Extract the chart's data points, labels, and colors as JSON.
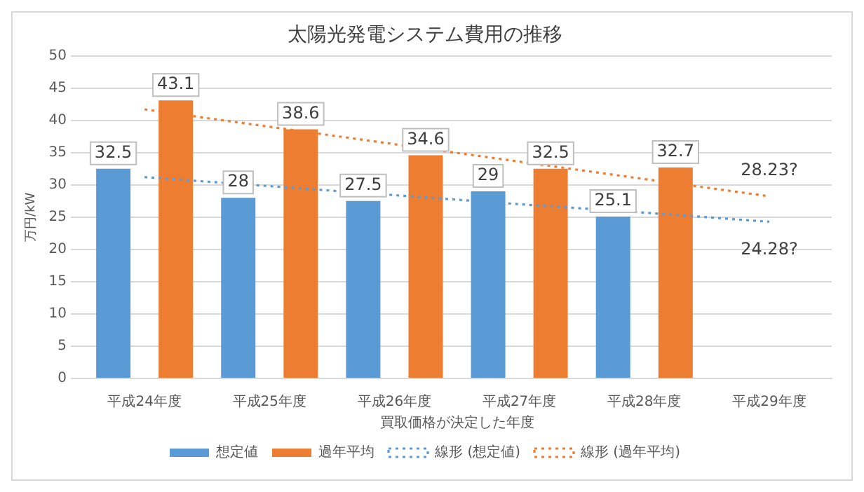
{
  "chart_data": {
    "type": "bar",
    "title": "太陽光発電システム費用の推移",
    "xlabel": "買取価格が決定した年度",
    "ylabel": "万円/kW",
    "categories": [
      "平成24年度",
      "平成25年度",
      "平成26年度",
      "平成27年度",
      "平成28年度",
      "平成29年度"
    ],
    "series": [
      {
        "name": "想定値",
        "color": "#5b9bd5",
        "values": [
          32.5,
          28,
          27.5,
          29,
          25.1,
          null
        ],
        "value_labels": [
          "32.5",
          "28",
          "27.5",
          "29",
          "25.1",
          null
        ]
      },
      {
        "name": "過年平均",
        "color": "#ed7d31",
        "values": [
          43.1,
          38.6,
          34.6,
          32.5,
          32.7,
          null
        ],
        "value_labels": [
          "43.1",
          "38.6",
          "34.6",
          "32.5",
          "32.7",
          null
        ]
      },
      {
        "name": "線形 (想定値)",
        "type": "line",
        "line_style": "dotted",
        "marker": "none",
        "color": "#5b9bd5",
        "values": [
          31.2,
          29.8,
          28.4,
          27.0,
          25.7,
          24.28
        ],
        "value_labels": [
          null,
          null,
          null,
          null,
          null,
          "24.28?"
        ]
      },
      {
        "name": "線形 (過年平均)",
        "type": "line",
        "line_style": "dotted",
        "marker": "none",
        "color": "#ed7d31",
        "values": [
          41.7,
          39.0,
          36.3,
          33.6,
          30.9,
          28.23
        ],
        "value_labels": [
          null,
          null,
          null,
          null,
          null,
          "28.23?"
        ]
      }
    ],
    "ylim": [
      0,
      50
    ],
    "yticks": [
      0,
      5,
      10,
      15,
      20,
      25,
      30,
      35,
      40,
      45,
      50
    ],
    "grid": "y",
    "legend": "bottom"
  }
}
